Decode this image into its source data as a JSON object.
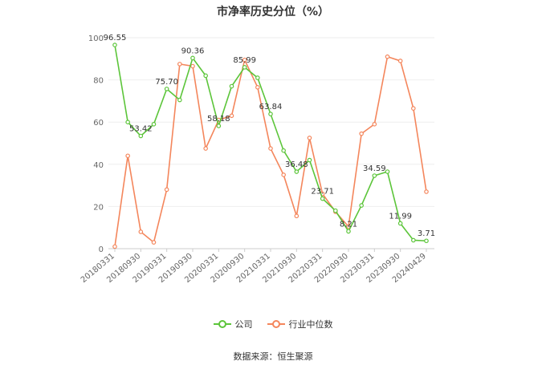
{
  "chart_data": {
    "type": "line",
    "title": "市净率历史分位（%）",
    "ylim": [
      0,
      100
    ],
    "yticks": [
      0,
      20,
      40,
      60,
      80,
      100
    ],
    "x_tick_labels": [
      "20180331",
      "20180930",
      "20190331",
      "20190930",
      "20200331",
      "20200930",
      "20210331",
      "20210930",
      "20220331",
      "20220930",
      "20230331",
      "20230930",
      "20240429"
    ],
    "x_tick_positions": [
      0,
      2,
      4,
      6,
      8,
      10,
      12,
      14,
      16,
      18,
      20,
      22,
      24
    ],
    "point_count": 25,
    "series": [
      {
        "name": "公司",
        "color": "#5cc53a",
        "values": [
          96.55,
          60.0,
          53.42,
          59.0,
          75.7,
          70.5,
          90.36,
          82.0,
          58.18,
          77.0,
          85.99,
          81.0,
          63.84,
          46.5,
          36.48,
          42.0,
          23.71,
          18.0,
          8.21,
          20.5,
          34.59,
          36.5,
          11.99,
          4.0,
          3.71
        ],
        "labels": {
          "0": "96.55",
          "2": "53.42",
          "4": "75.70",
          "6": "90.36",
          "8": "58.18",
          "10": "85.99",
          "12": "63.84",
          "14": "36.48",
          "16": "23.71",
          "18": "8.21",
          "20": "34.59",
          "22": "11.99",
          "24": "3.71"
        }
      },
      {
        "name": "行业中位数",
        "color": "#f4865c",
        "values": [
          1.0,
          44.0,
          8.0,
          3.0,
          28.0,
          87.5,
          86.5,
          47.5,
          61.0,
          63.0,
          89.5,
          76.5,
          47.5,
          35.0,
          15.5,
          52.5,
          26.0,
          17.5,
          10.5,
          54.5,
          59.0,
          91.0,
          89.0,
          66.5,
          27.0
        ]
      }
    ],
    "grid": true,
    "legend": "bottom-center"
  },
  "legend": {
    "company": "公司",
    "industry": "行业中位数"
  },
  "source": "数据来源：恒生聚源"
}
